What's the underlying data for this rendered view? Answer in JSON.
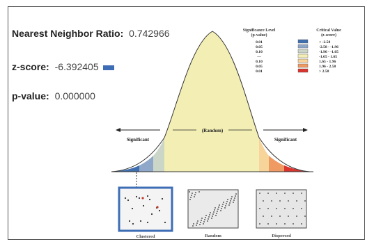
{
  "stats": {
    "nnr_label": "Nearest Neighbor Ratio:",
    "nnr_value": "0.742966",
    "z_label": "z-score:",
    "z_value": "-6.392405",
    "p_label": "p-value:",
    "p_value": "0.000000"
  },
  "chart": {
    "significant_left": "Significant",
    "random": "(Random)",
    "significant_right": "Significant"
  },
  "legend": {
    "col1_title": "Significance Level",
    "col1_sub": "(p-value)",
    "col2_title": "Critical Value",
    "col2_sub": "(z-score)",
    "rows": [
      {
        "p": "0.01",
        "z": "< -2.58",
        "color": "#3f6fae"
      },
      {
        "p": "0.05",
        "z": "-2.58 - -1.96",
        "color": "#8fa8c9"
      },
      {
        "p": "0.10",
        "z": "-1.96 - -1.65",
        "color": "#cbd6c9"
      },
      {
        "p": "---",
        "z": "-1.65 - 1.65",
        "color": "#f3efb4"
      },
      {
        "p": "0.10",
        "z": "1.65 - 1.96",
        "color": "#f6d49a"
      },
      {
        "p": "0.05",
        "z": "1.96 - 2.58",
        "color": "#ef9a63"
      },
      {
        "p": "0.01",
        "z": "> 2.58",
        "color": "#d9352d"
      }
    ]
  },
  "thumbnails": {
    "clustered": "Clustered",
    "random": "Random",
    "dispersed": "Dispersed"
  }
}
